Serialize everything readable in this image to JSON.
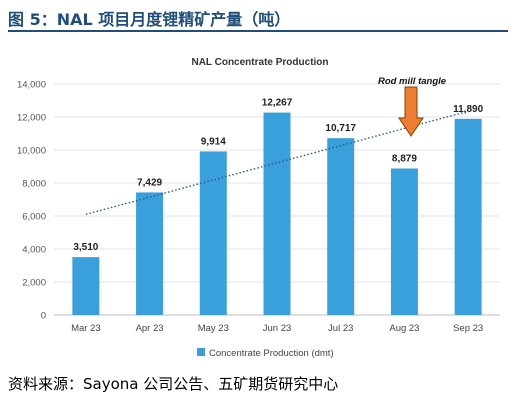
{
  "figure_title": "图 5：NAL 项目月度锂精矿产量（吨）",
  "source": "资料来源：Sayona 公司公告、五矿期货研究中心",
  "colors": {
    "bar": "#3aa0dc",
    "trend": "#2f5597",
    "arrow_fill": "#ed7d31",
    "arrow_stroke": "#8b3f00",
    "title": "#1f4e79"
  },
  "chart_data": {
    "type": "bar",
    "title": "NAL Concentrate Production",
    "categories": [
      "Mar 23",
      "Apr 23",
      "May 23",
      "Jun 23",
      "Jul 23",
      "Aug 23",
      "Sep 23"
    ],
    "series": [
      {
        "name": "Concentrate Production (dmt)",
        "values": [
          3510,
          7429,
          9914,
          12267,
          10717,
          8879,
          11890
        ]
      }
    ],
    "data_labels": [
      "3,510",
      "7,429",
      "9,914",
      "12,267",
      "10,717",
      "8,879",
      "11,890"
    ],
    "ylim": [
      0,
      14000
    ],
    "yticks": [
      0,
      2000,
      4000,
      6000,
      8000,
      10000,
      12000,
      14000
    ],
    "ytick_labels": [
      "0",
      "2,000",
      "4,000",
      "6,000",
      "8,000",
      "10,000",
      "12,000",
      "14,000"
    ],
    "grid": true,
    "legend": "bottom",
    "trendline": {
      "style": "dotted",
      "start": 6100,
      "end": 12350
    },
    "annotation": {
      "text": "Rod mill tangle",
      "category": "Aug 23"
    }
  }
}
